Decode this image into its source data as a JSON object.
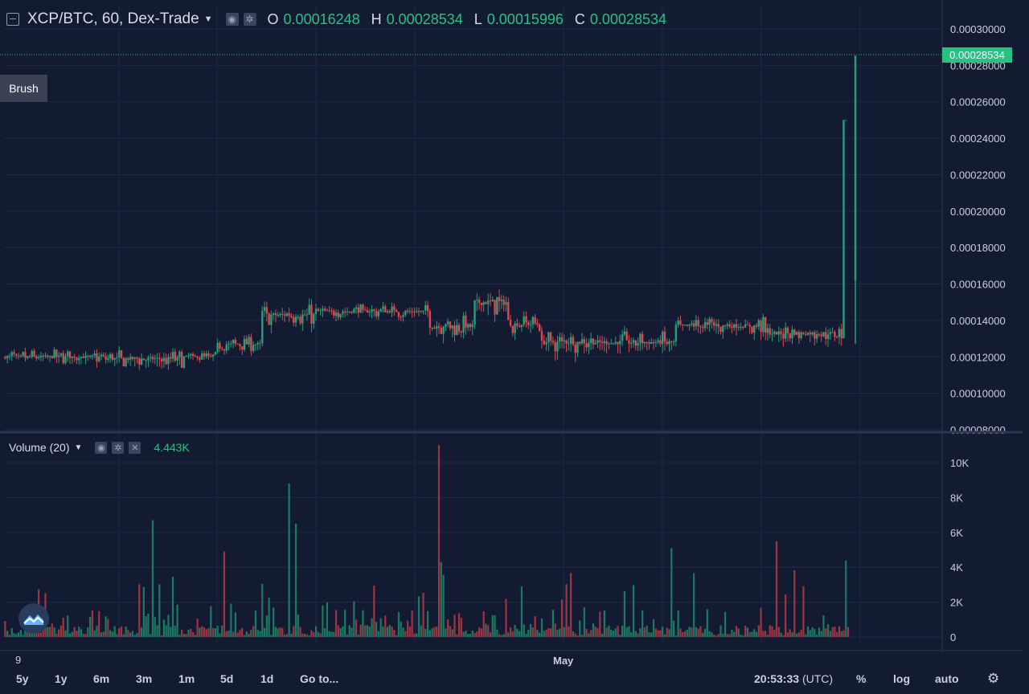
{
  "header": {
    "symbol": "XCP/BTC, 60, Dex-Trade",
    "open_label": "O",
    "open": "0.00016248",
    "high_label": "H",
    "high": "0.00028534",
    "low_label": "L",
    "low": "0.00015996",
    "close_label": "C",
    "close": "0.00028534"
  },
  "brush_label": "Brush",
  "volume": {
    "label": "Volume (20)",
    "value": "4.443K"
  },
  "last_price_tag": "0.00028534",
  "price_axis": [
    "0.00030000",
    "0.00028000",
    "0.00026000",
    "0.00024000",
    "0.00022000",
    "0.00020000",
    "0.00018000",
    "0.00016000",
    "0.00014000",
    "0.00012000",
    "0.00010000",
    "0.00008000"
  ],
  "volume_axis": [
    "10K",
    "8K",
    "6K",
    "4K",
    "2K",
    "0"
  ],
  "time_axis": {
    "left": "9",
    "month": "May"
  },
  "bottom": {
    "ranges": [
      "5y",
      "1y",
      "6m",
      "3m",
      "1m",
      "5d",
      "1d"
    ],
    "goto": "Go to...",
    "clock": "20:53:33",
    "tz": "(UTC)",
    "percent": "%",
    "log": "log",
    "auto": "auto"
  },
  "colors": {
    "up": "#26a07a",
    "down": "#e0474c",
    "bg": "#131b33",
    "accent": "#26c281"
  },
  "icons": [
    "eye-icon",
    "gear-icon",
    "close-icon",
    "settings-gear-icon",
    "logo-icon"
  ],
  "chart_data": {
    "type": "candlestick+volume",
    "pair": "XCP/BTC",
    "interval": "60",
    "exchange": "Dex-Trade",
    "price_ylim": [
      8e-05,
      0.0003
    ],
    "volume_ylim": [
      0,
      10000
    ],
    "price_segments": [
      {
        "from": 0,
        "to": 45,
        "price": 0.00012,
        "jitter": 4e-06
      },
      {
        "from": 45,
        "to": 80,
        "price": 0.000119,
        "jitter": 5e-06
      },
      {
        "from": 80,
        "to": 95,
        "price": 0.00012,
        "jitter": 3e-06
      },
      {
        "from": 95,
        "to": 115,
        "price": 0.000127,
        "jitter": 4e-06
      },
      {
        "from": 115,
        "to": 140,
        "price": 0.000143,
        "jitter": 6e-06
      },
      {
        "from": 140,
        "to": 190,
        "price": 0.000145,
        "jitter": 4e-06
      },
      {
        "from": 190,
        "to": 210,
        "price": 0.000137,
        "jitter": 6e-06
      },
      {
        "from": 210,
        "to": 225,
        "price": 0.00015,
        "jitter": 8e-06
      },
      {
        "from": 225,
        "to": 240,
        "price": 0.000138,
        "jitter": 5e-06
      },
      {
        "from": 240,
        "to": 300,
        "price": 0.000128,
        "jitter": 6e-06
      },
      {
        "from": 300,
        "to": 340,
        "price": 0.000137,
        "jitter": 5e-06
      },
      {
        "from": 340,
        "to": 375,
        "price": 0.000133,
        "jitter": 5e-06
      },
      {
        "from": 375,
        "to": 380,
        "price": 0.00025,
        "jitter": 0.0
      }
    ],
    "last_close": 0.00028534,
    "volume_spikes": [
      {
        "i": 66,
        "v": 6700,
        "d": "up"
      },
      {
        "i": 127,
        "v": 8800,
        "d": "up"
      },
      {
        "i": 130,
        "v": 6500,
        "d": "up"
      },
      {
        "i": 194,
        "v": 11000,
        "d": "down"
      },
      {
        "i": 195,
        "v": 4300,
        "d": "up"
      },
      {
        "i": 98,
        "v": 4900,
        "d": "down"
      },
      {
        "i": 345,
        "v": 5500,
        "d": "down"
      },
      {
        "i": 298,
        "v": 5100,
        "d": "up"
      },
      {
        "i": 376,
        "v": 4400,
        "d": "up"
      }
    ]
  }
}
